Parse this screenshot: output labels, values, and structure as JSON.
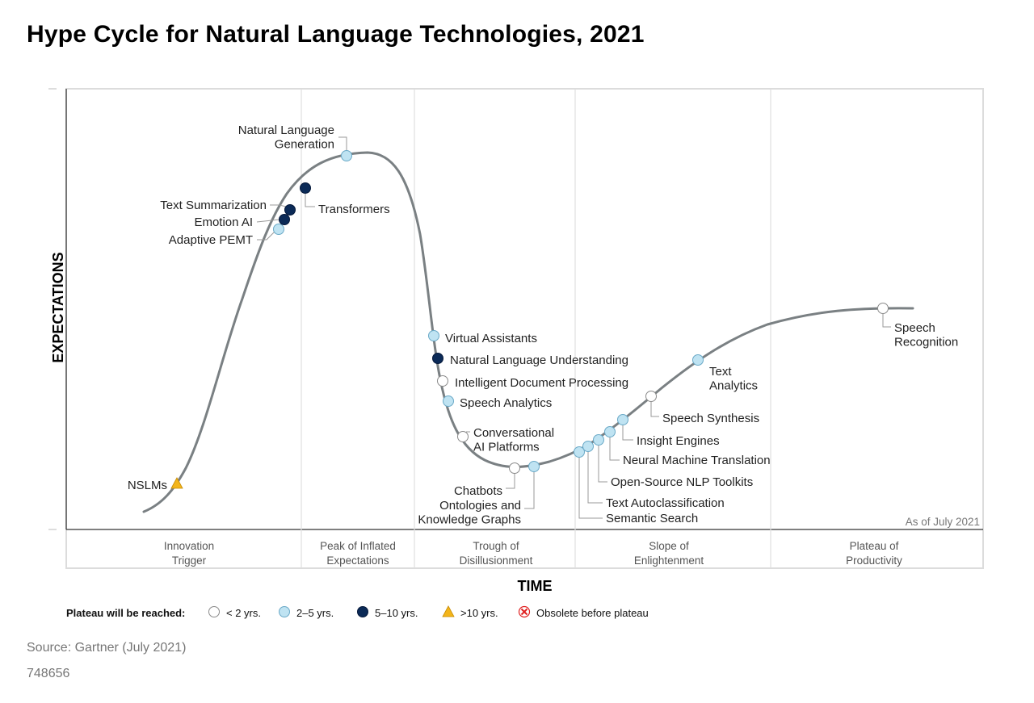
{
  "title": "Hype Cycle for Natural Language Technologies, 2021",
  "source": "Source: Gartner (July 2021)",
  "doc_id": "748656",
  "colors": {
    "curve": "#7a8083",
    "lt2": "#ffffff",
    "y2to5": "#bfe3f2",
    "y5to10": "#0b2a57",
    "gt10": "#f3b51b",
    "obsolete": "#e02020"
  },
  "chart_data": {
    "type": "hype-cycle",
    "xlabel": "TIME",
    "ylabel": "EXPECTATIONS",
    "as_of": "As of July 2021",
    "phases": [
      [
        "Innovation",
        "Trigger"
      ],
      [
        "Peak of Inflated",
        "Expectations"
      ],
      [
        "Trough of",
        "Disillusionment"
      ],
      [
        "Slope of",
        "Enlightenment"
      ],
      [
        "Plateau of",
        "Productivity"
      ]
    ],
    "legend": {
      "title": "Plateau will be reached:",
      "items": [
        {
          "key": "lt2",
          "label": "< 2 yrs."
        },
        {
          "key": "y2to5",
          "label": "2–5 yrs."
        },
        {
          "key": "y5to10",
          "label": "5–10 yrs."
        },
        {
          "key": "gt10",
          "label": ">10 yrs."
        },
        {
          "key": "obsolete",
          "label": "Obsolete before plateau"
        }
      ]
    },
    "technologies": [
      {
        "lines": [
          "NSLMs"
        ],
        "plateau": "gt10"
      },
      {
        "lines": [
          "Adaptive PEMT"
        ],
        "plateau": "y2to5"
      },
      {
        "lines": [
          "Emotion AI"
        ],
        "plateau": "y5to10"
      },
      {
        "lines": [
          "Text Summarization"
        ],
        "plateau": "y5to10"
      },
      {
        "lines": [
          "Transformers"
        ],
        "plateau": "y5to10"
      },
      {
        "lines": [
          "Natural Language",
          "Generation"
        ],
        "plateau": "y2to5"
      },
      {
        "lines": [
          "Virtual Assistants"
        ],
        "plateau": "y2to5"
      },
      {
        "lines": [
          "Natural Language Understanding"
        ],
        "plateau": "y5to10"
      },
      {
        "lines": [
          "Intelligent Document Processing"
        ],
        "plateau": "lt2"
      },
      {
        "lines": [
          "Speech Analytics"
        ],
        "plateau": "y2to5"
      },
      {
        "lines": [
          "Conversational",
          "AI Platforms"
        ],
        "plateau": "lt2"
      },
      {
        "lines": [
          "Chatbots"
        ],
        "plateau": "lt2"
      },
      {
        "lines": [
          "Ontologies and",
          "Knowledge Graphs"
        ],
        "plateau": "y2to5"
      },
      {
        "lines": [
          "Semantic Search"
        ],
        "plateau": "y2to5"
      },
      {
        "lines": [
          "Text Autoclassification"
        ],
        "plateau": "y2to5"
      },
      {
        "lines": [
          "Open-Source NLP Toolkits"
        ],
        "plateau": "y2to5"
      },
      {
        "lines": [
          "Neural Machine Translation"
        ],
        "plateau": "y2to5"
      },
      {
        "lines": [
          "Insight Engines"
        ],
        "plateau": "y2to5"
      },
      {
        "lines": [
          "Speech Synthesis"
        ],
        "plateau": "lt2"
      },
      {
        "lines": [
          "Text",
          "Analytics"
        ],
        "plateau": "y2to5"
      },
      {
        "lines": [
          "Speech",
          "Recognition"
        ],
        "plateau": "lt2"
      }
    ]
  }
}
